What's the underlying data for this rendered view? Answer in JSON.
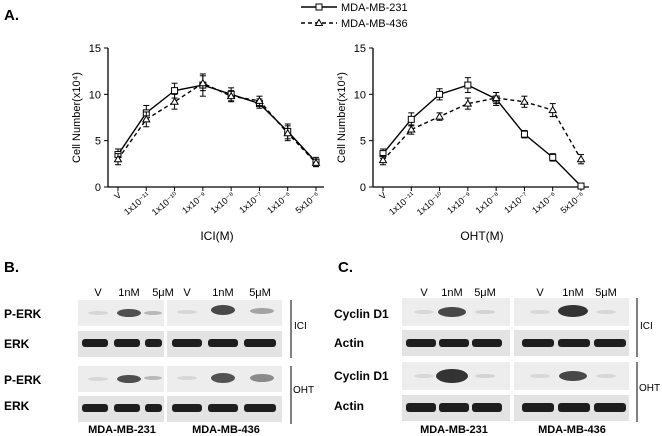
{
  "panel_a_label": "A.",
  "panel_b_label": "B.",
  "panel_c_label": "C.",
  "legend": [
    {
      "name": "MDA-MB-231",
      "style": "solid",
      "marker": "square"
    },
    {
      "name": "MDA-MB-436",
      "style": "dashed",
      "marker": "triangle"
    }
  ],
  "chart_data": [
    {
      "type": "line",
      "xlabel": "ICI(M)",
      "ylabel": "Cell Number(x10⁴)",
      "ylim": [
        0,
        15
      ],
      "yticks": [
        "0",
        "5",
        "10",
        "15"
      ],
      "categories": [
        "V",
        "1x10⁻¹¹",
        "1x10⁻¹⁰",
        "1x10⁻⁹",
        "1x10⁻⁸",
        "1x10⁻⁷",
        "1x10⁻⁶",
        "5x10⁻⁶"
      ],
      "series": [
        {
          "name": "MDA-MB-231",
          "values": [
            3.5,
            8.0,
            10.4,
            11.0,
            10.0,
            9.0,
            6.0,
            2.7
          ],
          "errors": [
            0.6,
            0.8,
            0.8,
            1.2,
            0.7,
            0.5,
            0.8,
            0.5
          ]
        },
        {
          "name": "MDA-MB-436",
          "values": [
            3.0,
            7.3,
            9.2,
            11.2,
            9.8,
            9.3,
            5.8,
            2.6
          ],
          "errors": [
            0.6,
            0.8,
            0.8,
            0.8,
            0.6,
            0.5,
            0.8,
            0.4
          ]
        }
      ]
    },
    {
      "type": "line",
      "xlabel": "OHT(M)",
      "ylabel": "Cell Number(x10⁴)",
      "ylim": [
        0,
        15
      ],
      "yticks": [
        "0",
        "5",
        "10",
        "15"
      ],
      "categories": [
        "V",
        "1x10⁻¹¹",
        "1x10⁻¹⁰",
        "1x10⁻⁹",
        "1x10⁻⁸",
        "1x10⁻⁷",
        "1x10⁻⁶",
        "5x10⁻⁶"
      ],
      "series": [
        {
          "name": "MDA-MB-231",
          "values": [
            3.6,
            7.3,
            10.0,
            11.0,
            9.5,
            5.7,
            3.2,
            0.1
          ],
          "errors": [
            0.5,
            0.7,
            0.6,
            0.8,
            0.7,
            0.4,
            0.4,
            0.2
          ]
        },
        {
          "name": "MDA-MB-436",
          "values": [
            2.9,
            6.2,
            7.6,
            9.0,
            9.6,
            9.2,
            8.3,
            3.0
          ],
          "errors": [
            0.5,
            0.5,
            0.4,
            0.6,
            0.6,
            0.6,
            0.7,
            0.5
          ]
        }
      ]
    }
  ],
  "blot_b": {
    "lanes": [
      "V",
      "1nM",
      "5μM"
    ],
    "rows": [
      "P-ERK",
      "ERK",
      "P-ERK",
      "ERK"
    ],
    "treatments": [
      "ICI",
      "OHT"
    ],
    "cell_lines": [
      "MDA-MB-231",
      "MDA-MB-436"
    ]
  },
  "blot_c": {
    "lanes": [
      "V",
      "1nM",
      "5μM"
    ],
    "rows": [
      "Cyclin D1",
      "Actin",
      "Cyclin D1",
      "Actin"
    ],
    "treatments": [
      "ICI",
      "OHT"
    ],
    "cell_lines": [
      "MDA-MB-231",
      "MDA-MB-436"
    ]
  }
}
